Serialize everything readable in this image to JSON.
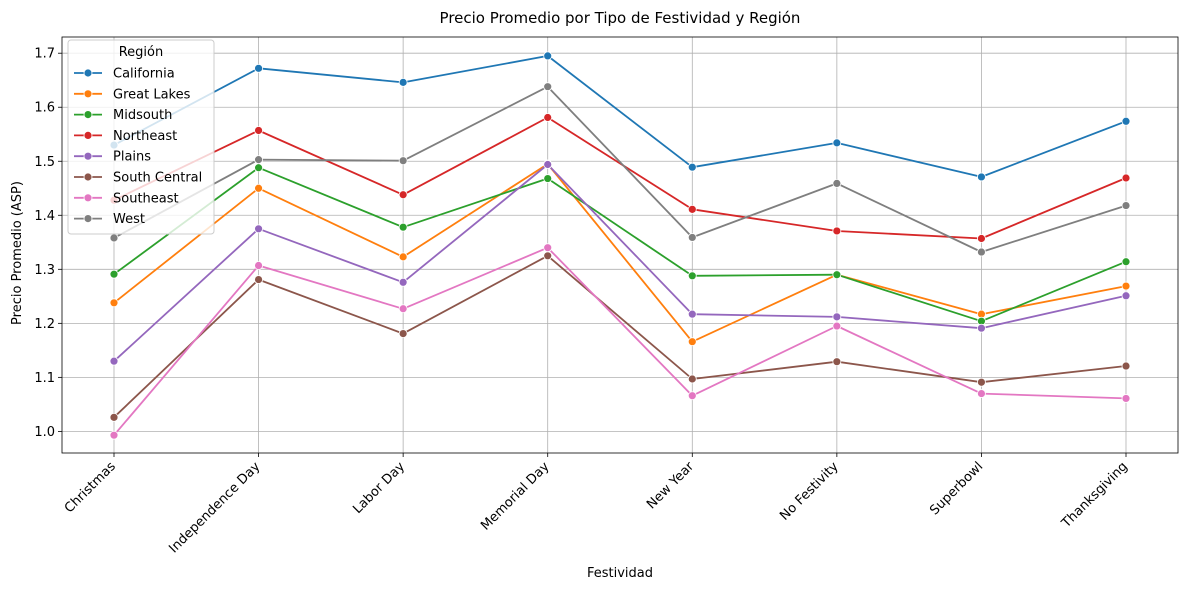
{
  "chart_data": {
    "type": "line",
    "title": "Precio Promedio por Tipo de Festividad y Región",
    "xlabel": "Festividad",
    "ylabel": "Precio Promedio (ASP)",
    "categories": [
      "Christmas",
      "Independence Day",
      "Labor Day",
      "Memorial Day",
      "New Year",
      "No Festivity",
      "Superbowl",
      "Thanksgiving"
    ],
    "ylim": [
      0.96,
      1.73
    ],
    "yticks": [
      "1.0",
      "1.1",
      "1.2",
      "1.3",
      "1.4",
      "1.5",
      "1.6",
      "1.7"
    ],
    "grid": true,
    "legend": {
      "title": "Región",
      "position": "top-left"
    },
    "series": [
      {
        "name": "California",
        "color": "#1f77b4",
        "values": [
          1.53,
          1.672,
          1.646,
          1.695,
          1.489,
          1.534,
          1.471,
          1.574
        ]
      },
      {
        "name": "Great Lakes",
        "color": "#ff7f0e",
        "values": [
          1.238,
          1.45,
          1.323,
          1.495,
          1.166,
          1.29,
          1.217,
          1.269
        ]
      },
      {
        "name": "Midsouth",
        "color": "#2ca02c",
        "values": [
          1.291,
          1.488,
          1.378,
          1.468,
          1.288,
          1.29,
          1.204,
          1.314
        ]
      },
      {
        "name": "Northeast",
        "color": "#d62728",
        "values": [
          1.428,
          1.557,
          1.438,
          1.581,
          1.411,
          1.371,
          1.357,
          1.469
        ]
      },
      {
        "name": "Plains",
        "color": "#9467bd",
        "values": [
          1.13,
          1.375,
          1.276,
          1.494,
          1.217,
          1.212,
          1.191,
          1.251
        ]
      },
      {
        "name": "South Central",
        "color": "#8c564b",
        "values": [
          1.026,
          1.281,
          1.181,
          1.325,
          1.097,
          1.129,
          1.091,
          1.121
        ]
      },
      {
        "name": "Southeast",
        "color": "#e377c2",
        "values": [
          0.993,
          1.307,
          1.227,
          1.34,
          1.066,
          1.195,
          1.07,
          1.061
        ]
      },
      {
        "name": "West",
        "color": "#7f7f7f",
        "values": [
          1.358,
          1.503,
          1.501,
          1.638,
          1.359,
          1.459,
          1.332,
          1.418
        ]
      }
    ]
  }
}
